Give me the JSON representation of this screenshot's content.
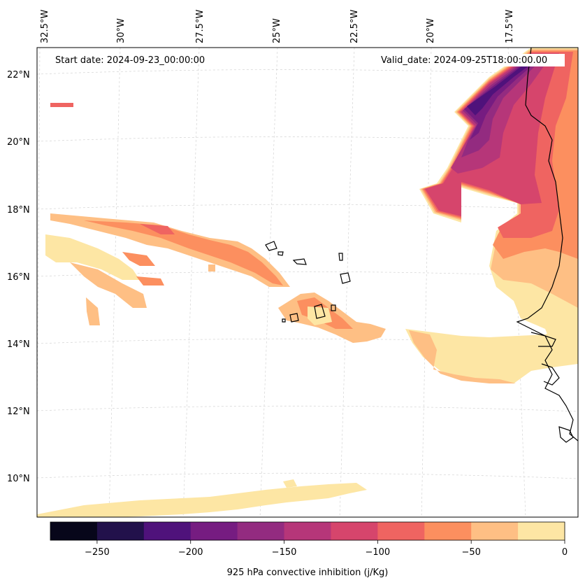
{
  "map": {
    "start_date": "Start date: 2024-09-23_00:00:00",
    "valid_date": "Valid_date: 2024-09-25T18:00:00.00",
    "lon_labels": [
      "32.5°W",
      "30°W",
      "27.5°W",
      "25°W",
      "22.5°W",
      "20°W",
      "17.5°W"
    ],
    "lat_labels": [
      "22°N",
      "20°N",
      "18°N",
      "16°N",
      "14°N",
      "12°N",
      "10°N"
    ],
    "projection_hint": "tilted graticule, conic-like",
    "colors": {
      "land_outline": "#000000",
      "gridline": "#cccccc"
    }
  },
  "colorbar": {
    "label": "925 hPa convective inhibition (j/Kg)",
    "tick_labels": [
      "−250",
      "−200",
      "−150",
      "−100",
      "−50",
      "0"
    ],
    "ticks": [
      -250,
      -200,
      -150,
      -100,
      -50,
      0
    ],
    "bounds": [
      -275,
      -250,
      -225,
      -200,
      -175,
      -150,
      -125,
      -100,
      -75,
      -50,
      -25,
      0
    ],
    "colormap": "magma",
    "colors": [
      "#07061a",
      "#22114b",
      "#4f127b",
      "#761c81",
      "#932b80",
      "#b63679",
      "#d6456c",
      "#ef6461",
      "#fc8f5f",
      "#febf84",
      "#fde6a4"
    ]
  }
}
